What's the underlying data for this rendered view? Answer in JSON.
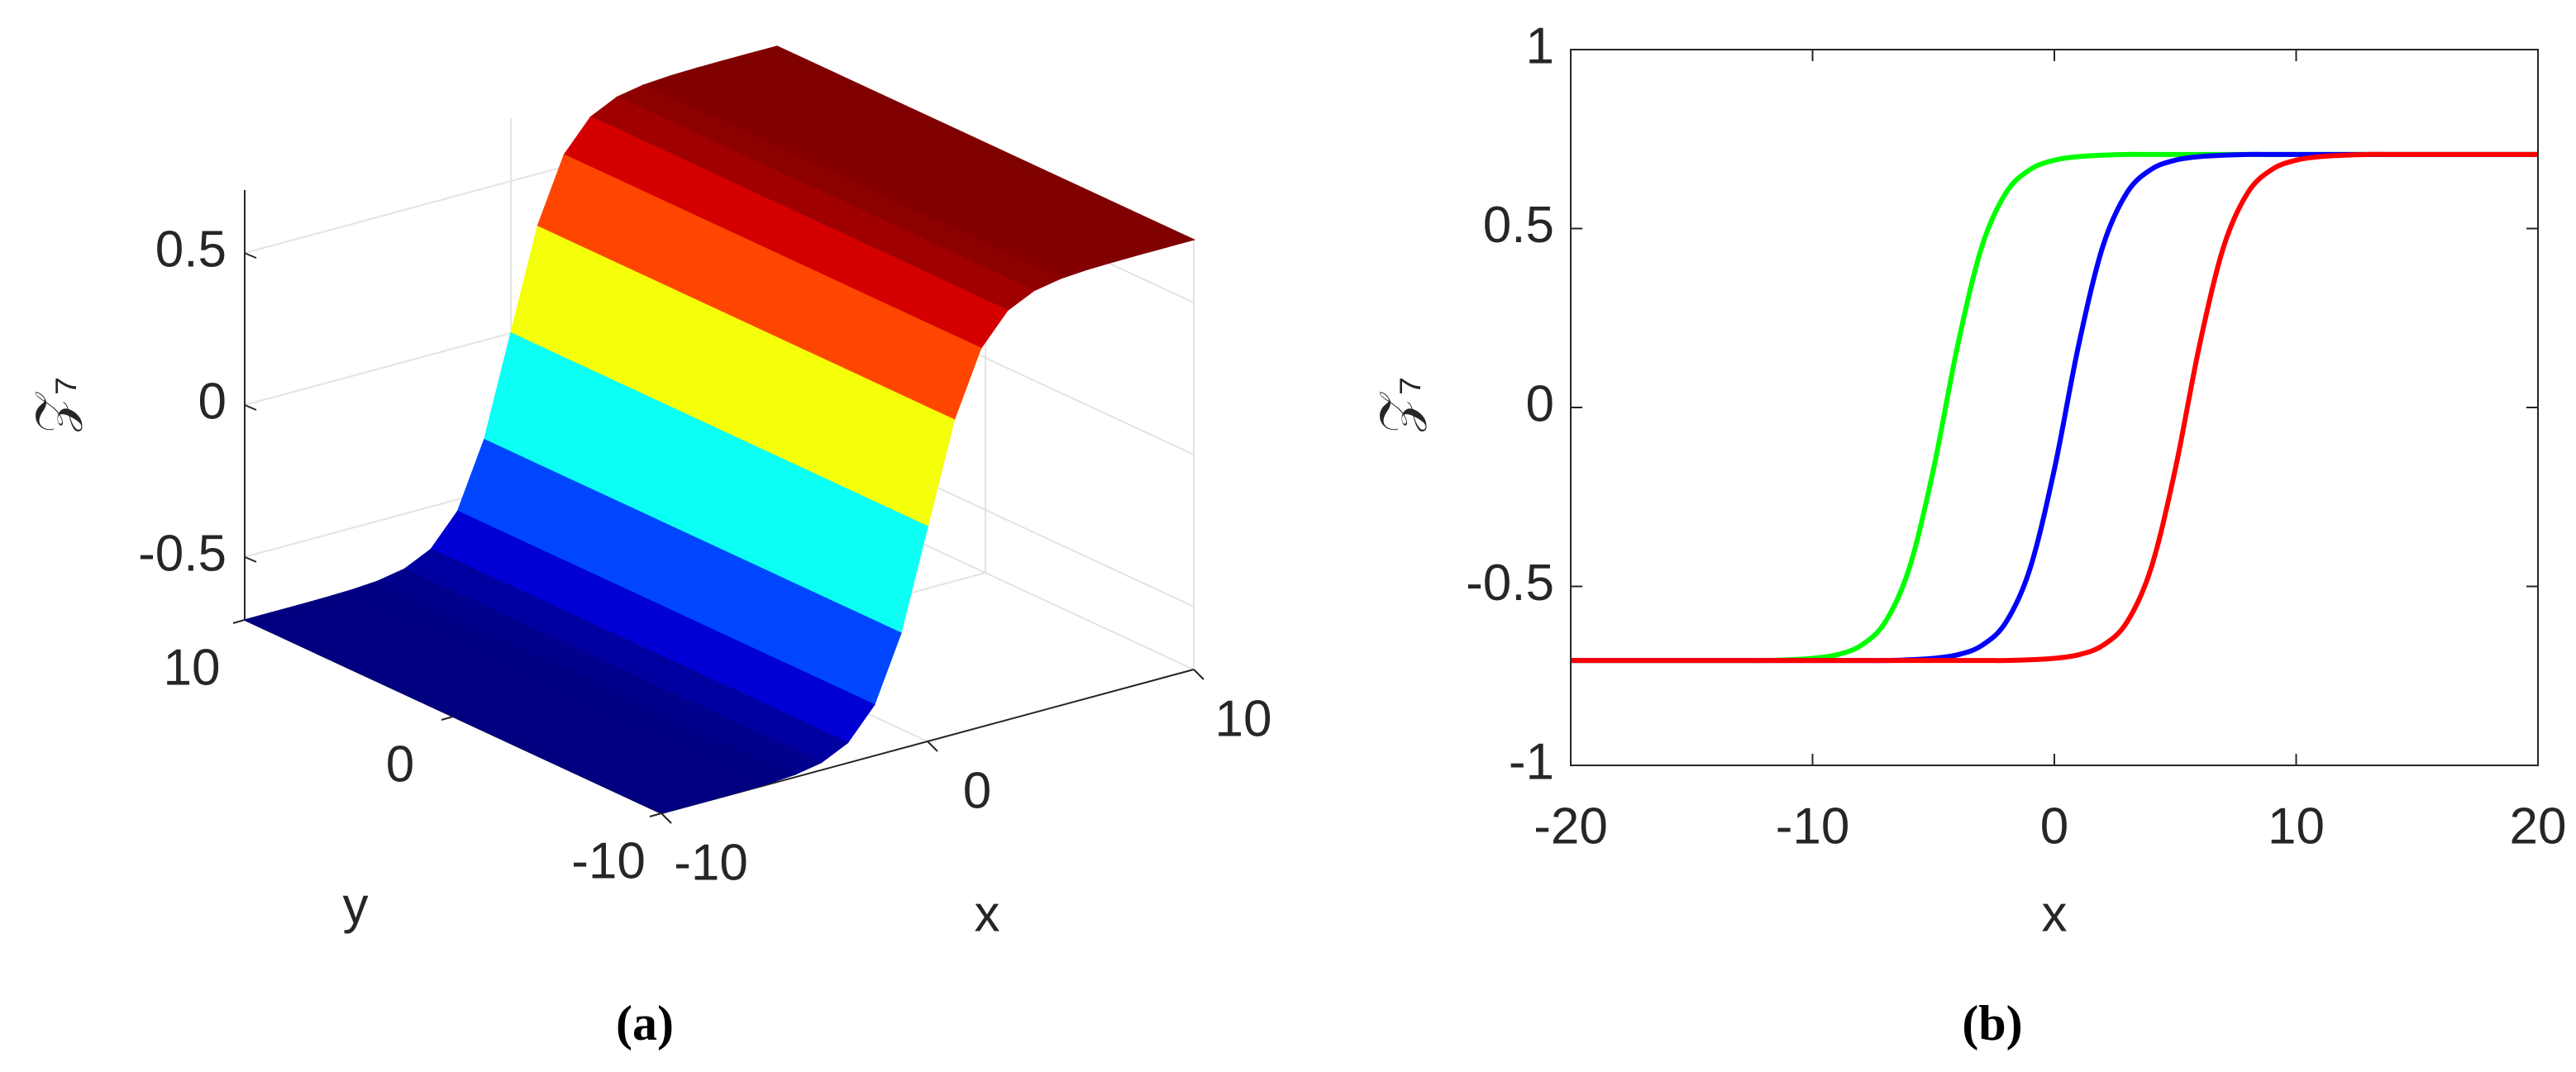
{
  "chart_data": [
    {
      "type": "surface",
      "caption": "(a)",
      "xlabel": "x",
      "ylabel": "y",
      "zlabel": "𝒵₇",
      "x": [
        -10,
        -9,
        -8,
        -7,
        -6,
        -5,
        -4,
        -3,
        -2,
        -1,
        0,
        1,
        2,
        3,
        4,
        5,
        6,
        7,
        8,
        9,
        10
      ],
      "z": [
        -0.707,
        -0.707,
        -0.707,
        -0.706,
        -0.704,
        -0.698,
        -0.682,
        -0.64,
        -0.539,
        -0.327,
        0,
        0.327,
        0.539,
        0.64,
        0.682,
        0.698,
        0.704,
        0.706,
        0.707,
        0.707,
        0.707
      ],
      "xlim": [
        -10,
        10
      ],
      "ylim": [
        -10,
        10
      ],
      "zlim": [
        -0.707,
        0.707
      ],
      "xticks": [
        -10,
        0,
        10
      ],
      "yticks": [
        -10,
        0,
        10
      ],
      "zticks": [
        -0.5,
        0,
        0.5
      ],
      "colormap": "jet",
      "grid": true
    },
    {
      "type": "line",
      "caption": "(b)",
      "xlabel": "x",
      "ylabel": "𝒵₇",
      "x": [
        -20,
        -19,
        -18,
        -17,
        -16,
        -15,
        -14,
        -13,
        -12,
        -11,
        -10,
        -9,
        -8,
        -7,
        -6,
        -5,
        -4,
        -3,
        -2,
        -1,
        0,
        1,
        2,
        3,
        4,
        5,
        6,
        7,
        8,
        9,
        10,
        11,
        12,
        13,
        14,
        15,
        16,
        17,
        18,
        19,
        20
      ],
      "series": [
        {
          "color": "#00ff00",
          "values": [
            -0.707,
            -0.707,
            -0.707,
            -0.707,
            -0.707,
            -0.707,
            -0.707,
            -0.707,
            -0.707,
            -0.705,
            -0.701,
            -0.691,
            -0.665,
            -0.6,
            -0.449,
            -0.173,
            0.173,
            0.449,
            0.6,
            0.665,
            0.691,
            0.701,
            0.705,
            0.707,
            0.707,
            0.707,
            0.707,
            0.707,
            0.707,
            0.707,
            0.707,
            0.707,
            0.707,
            0.707,
            0.707,
            0.707,
            0.707,
            0.707,
            0.707,
            0.707,
            0.707
          ]
        },
        {
          "color": "#0000ff",
          "values": [
            -0.707,
            -0.707,
            -0.707,
            -0.707,
            -0.707,
            -0.707,
            -0.707,
            -0.707,
            -0.707,
            -0.707,
            -0.707,
            -0.707,
            -0.707,
            -0.707,
            -0.705,
            -0.701,
            -0.691,
            -0.665,
            -0.6,
            -0.449,
            -0.173,
            0.173,
            0.449,
            0.6,
            0.665,
            0.691,
            0.701,
            0.705,
            0.707,
            0.707,
            0.707,
            0.707,
            0.707,
            0.707,
            0.707,
            0.707,
            0.707,
            0.707,
            0.707,
            0.707,
            0.707
          ]
        },
        {
          "color": "#ff0000",
          "values": [
            -0.707,
            -0.707,
            -0.707,
            -0.707,
            -0.707,
            -0.707,
            -0.707,
            -0.707,
            -0.707,
            -0.707,
            -0.707,
            -0.707,
            -0.707,
            -0.707,
            -0.707,
            -0.707,
            -0.707,
            -0.707,
            -0.707,
            -0.705,
            -0.701,
            -0.691,
            -0.665,
            -0.6,
            -0.449,
            -0.173,
            0.173,
            0.449,
            0.6,
            0.665,
            0.691,
            0.701,
            0.705,
            0.707,
            0.707,
            0.707,
            0.707,
            0.707,
            0.707,
            0.707,
            0.707
          ]
        }
      ],
      "xlim": [
        -20,
        20
      ],
      "ylim": [
        -1,
        1
      ],
      "xticks": [
        -20,
        -10,
        0,
        10,
        20
      ],
      "yticks": [
        -1,
        -0.5,
        0,
        0.5,
        1
      ],
      "grid": false
    }
  ]
}
